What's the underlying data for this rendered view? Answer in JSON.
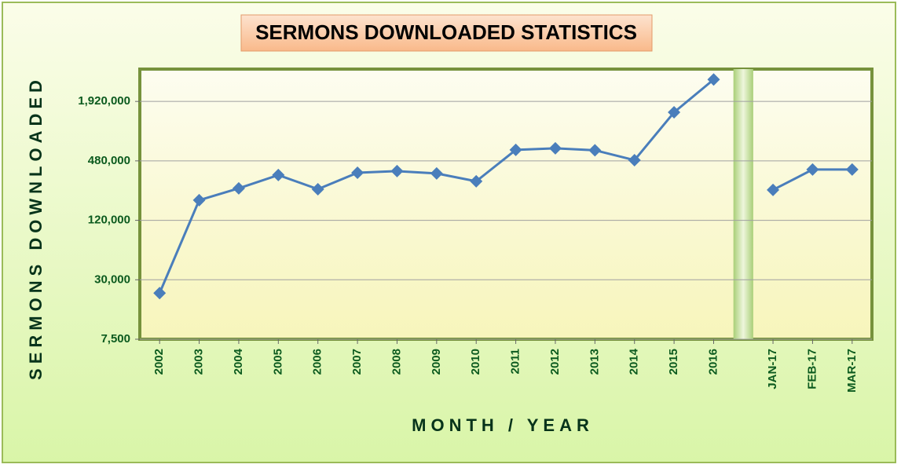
{
  "chart_data": {
    "type": "line",
    "title": "SERMONS DOWNLOADED STATISTICS",
    "x_label": "MONTH / YEAR",
    "y_label": "SERMONS DOWNLOADED",
    "categories": [
      "2002",
      "2003",
      "2004",
      "2005",
      "2006",
      "2007",
      "2008",
      "2009",
      "2010",
      "2011",
      "2012",
      "2013",
      "2014",
      "2015",
      "2016",
      null,
      "JAN-17",
      "FEB-17",
      "MAR-17"
    ],
    "series": [
      {
        "name": "Sermons Downloaded",
        "color": "#4a7ebb",
        "values": [
          22000,
          192000,
          253000,
          345000,
          248000,
          364000,
          378000,
          358000,
          298000,
          620000,
          643000,
          615000,
          488000,
          1490000,
          3200000,
          null,
          244000,
          392000,
          392000
        ]
      }
    ],
    "log_scale": true,
    "ylim": [
      7500,
      4080000
    ],
    "yticks": [
      {
        "value": 7500,
        "label": "7,500"
      },
      {
        "value": 30000,
        "label": "30,000"
      },
      {
        "value": 120000,
        "label": "120,000"
      },
      {
        "value": 480000,
        "label": "480,000"
      },
      {
        "value": 1920000,
        "label": "1,920,000"
      }
    ],
    "grid": true
  }
}
